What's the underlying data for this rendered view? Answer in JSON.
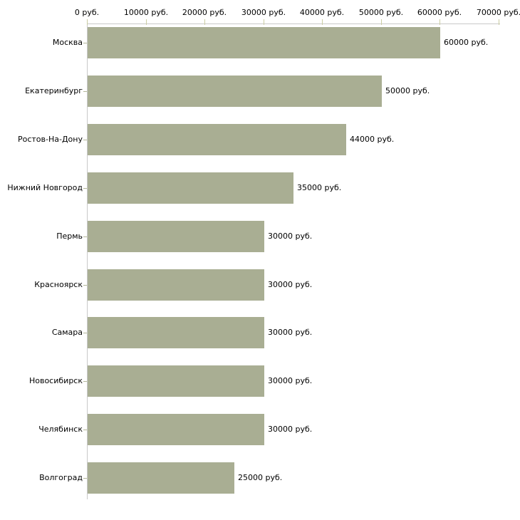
{
  "chart_data": {
    "type": "bar",
    "orientation": "horizontal",
    "title": "",
    "xlabel": "",
    "ylabel": "",
    "unit": "руб.",
    "categories": [
      "Москва",
      "Екатеринбург",
      "Ростов-На-Дону",
      "Нижний Новгород",
      "Пермь",
      "Красноярск",
      "Самара",
      "Новосибирск",
      "Челябинск",
      "Волгоград"
    ],
    "values": [
      60000,
      50000,
      44000,
      35000,
      30000,
      30000,
      30000,
      30000,
      30000,
      25000
    ],
    "value_labels": [
      "60000 руб.",
      "50000 руб.",
      "44000 руб.",
      "35000 руб.",
      "30000 руб.",
      "30000 руб.",
      "30000 руб.",
      "30000 руб.",
      "30000 руб.",
      "25000 руб."
    ],
    "x_ticks": [
      0,
      10000,
      20000,
      30000,
      40000,
      50000,
      60000,
      70000
    ],
    "x_tick_labels": [
      "0 руб.",
      "10000 руб.",
      "20000 руб.",
      "30000 руб.",
      "40000 руб.",
      "50000 руб.",
      "60000 руб.",
      "70000 руб."
    ],
    "xlim": [
      0,
      70000
    ],
    "grid": false,
    "legend": "none",
    "axis_position": "top",
    "colors": {
      "bar_fill": "#a9ae93",
      "axis_line": "#c9c9c9",
      "x_tick_mark": "#cbcda3",
      "y_tick_mark": "#b3b79a",
      "text": "#000000",
      "background": "#ffffff"
    }
  }
}
